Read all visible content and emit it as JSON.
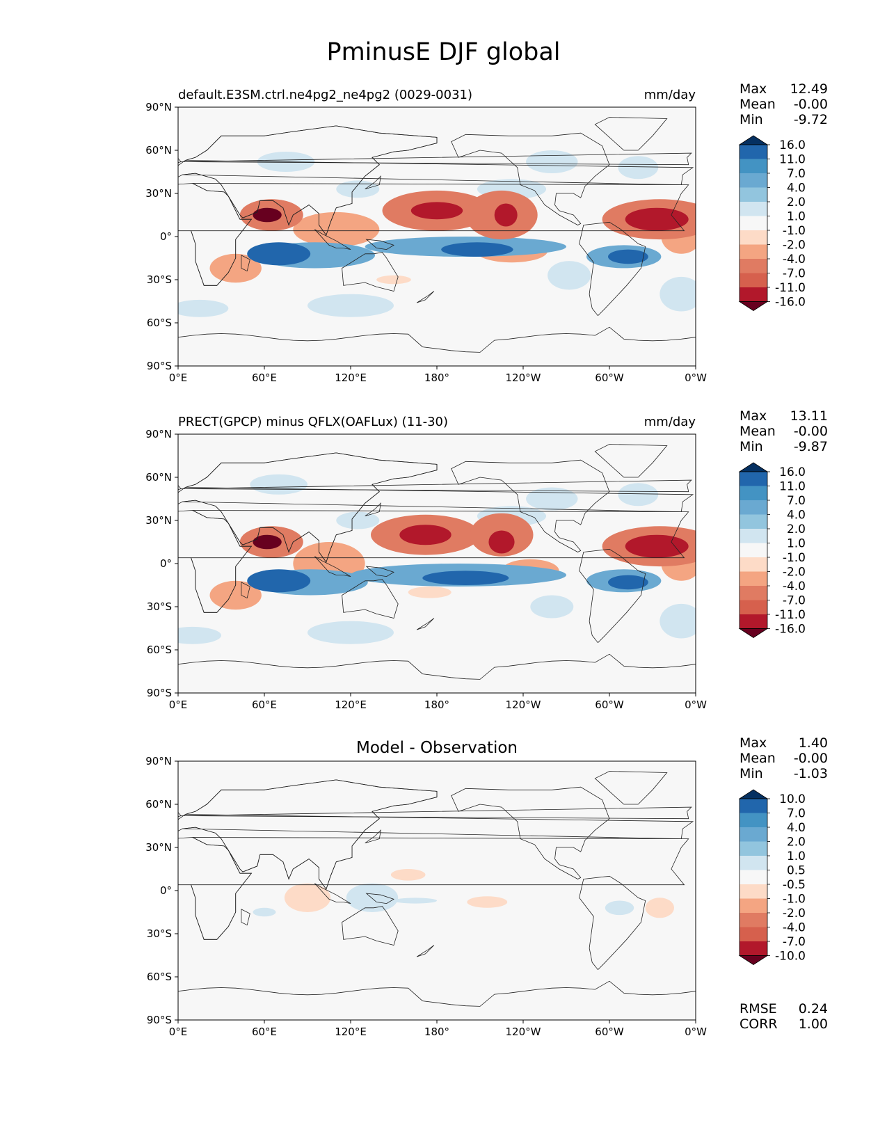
{
  "title": "PminusE DJF global",
  "chart_data": [
    {
      "type": "heatmap",
      "title": "default.E3SM.ctrl.ne4pg2_ne4pg2 (0029-0031)",
      "units": "mm/day",
      "x_ticks": [
        "0°E",
        "60°E",
        "120°E",
        "180°",
        "120°W",
        "60°W",
        "0°W"
      ],
      "y_ticks": [
        "90°N",
        "60°N",
        "30°N",
        "0°",
        "30°S",
        "60°S",
        "90°S"
      ],
      "xlim": [
        0,
        360
      ],
      "ylim": [
        -90,
        90
      ],
      "stats": [
        {
          "label": "Max",
          "value": "12.49"
        },
        {
          "label": "Mean",
          "value": "-0.00"
        },
        {
          "label": "Min",
          "value": "-9.72"
        }
      ],
      "colorbar_levels": [
        "16.0",
        "11.0",
        "7.0",
        "4.0",
        "2.0",
        "1.0",
        "-1.0",
        "-2.0",
        "-4.0",
        "-7.0",
        "-11.0",
        "-16.0"
      ],
      "colorbar_colors": [
        "#053061",
        "#2166ac",
        "#4393c3",
        "#6aa9d1",
        "#92c5de",
        "#d1e5f0",
        "#f7f7f7",
        "#fddbc7",
        "#f4a582",
        "#e07b62",
        "#d6604d",
        "#b2182b",
        "#67001f"
      ],
      "blobs": [
        {
          "lon": 95,
          "lat": -13,
          "rx": 42,
          "ry": 9,
          "v": -3
        },
        {
          "lon": 70,
          "lat": -12,
          "rx": 22,
          "ry": 8,
          "v": -5
        },
        {
          "lon": 200,
          "lat": -7,
          "rx": 70,
          "ry": 7,
          "v": -3
        },
        {
          "lon": 208,
          "lat": -9,
          "rx": 25,
          "ry": 5,
          "v": -5
        },
        {
          "lon": 310,
          "lat": -14,
          "rx": 26,
          "ry": 8,
          "v": -3
        },
        {
          "lon": 313,
          "lat": -14,
          "rx": 14,
          "ry": 5,
          "v": -5
        },
        {
          "lon": 272,
          "lat": -27,
          "rx": 15,
          "ry": 10,
          "v": -1
        },
        {
          "lon": 125,
          "lat": 33,
          "rx": 15,
          "ry": 6,
          "v": -1
        },
        {
          "lon": 232,
          "lat": 33,
          "rx": 24,
          "ry": 7,
          "v": -1
        },
        {
          "lon": 260,
          "lat": 52,
          "rx": 18,
          "ry": 8,
          "v": -1
        },
        {
          "lon": 320,
          "lat": 48,
          "rx": 14,
          "ry": 8,
          "v": -1
        },
        {
          "lon": 75,
          "lat": 52,
          "rx": 20,
          "ry": 7,
          "v": -1
        },
        {
          "lon": 120,
          "lat": -48,
          "rx": 30,
          "ry": 8,
          "v": -1
        },
        {
          "lon": 350,
          "lat": -40,
          "rx": 15,
          "ry": 12,
          "v": -1
        },
        {
          "lon": 15,
          "lat": -50,
          "rx": 20,
          "ry": 6,
          "v": -1
        },
        {
          "lon": 180,
          "lat": 18,
          "rx": 38,
          "ry": 14,
          "v": 3
        },
        {
          "lon": 180,
          "lat": 18,
          "rx": 18,
          "ry": 6,
          "v": 5
        },
        {
          "lon": 225,
          "lat": 15,
          "rx": 25,
          "ry": 17,
          "v": 3
        },
        {
          "lon": 228,
          "lat": 15,
          "rx": 8,
          "ry": 8,
          "v": 5
        },
        {
          "lon": 335,
          "lat": 12,
          "rx": 40,
          "ry": 14,
          "v": 3
        },
        {
          "lon": 333,
          "lat": 12,
          "rx": 22,
          "ry": 8,
          "v": 5
        },
        {
          "lon": 65,
          "lat": 15,
          "rx": 22,
          "ry": 11,
          "v": 3
        },
        {
          "lon": 62,
          "lat": 15,
          "rx": 10,
          "ry": 5,
          "v": 6
        },
        {
          "lon": 110,
          "lat": 5,
          "rx": 30,
          "ry": 12,
          "v": 2
        },
        {
          "lon": 232,
          "lat": -10,
          "rx": 25,
          "ry": 8,
          "v": 2
        },
        {
          "lon": 350,
          "lat": 0,
          "rx": 14,
          "ry": 12,
          "v": 2
        },
        {
          "lon": 40,
          "lat": -22,
          "rx": 18,
          "ry": 10,
          "v": 2
        },
        {
          "lon": 150,
          "lat": -30,
          "rx": 12,
          "ry": 3,
          "v": 1
        }
      ]
    },
    {
      "type": "heatmap",
      "title": "PRECT(GPCP) minus QFLX(OAFLux) (11-30)",
      "units": "mm/day",
      "x_ticks": [
        "0°E",
        "60°E",
        "120°E",
        "180°",
        "120°W",
        "60°W",
        "0°W"
      ],
      "y_ticks": [
        "90°N",
        "60°N",
        "30°N",
        "0°",
        "30°S",
        "60°S",
        "90°S"
      ],
      "xlim": [
        0,
        360
      ],
      "ylim": [
        -90,
        90
      ],
      "stats": [
        {
          "label": "Max",
          "value": "13.11"
        },
        {
          "label": "Mean",
          "value": "-0.00"
        },
        {
          "label": "Min",
          "value": "-9.87"
        }
      ],
      "colorbar_levels": [
        "16.0",
        "11.0",
        "7.0",
        "4.0",
        "2.0",
        "1.0",
        "-1.0",
        "-2.0",
        "-4.0",
        "-7.0",
        "-11.0",
        "-16.0"
      ],
      "colorbar_colors": [
        "#053061",
        "#2166ac",
        "#4393c3",
        "#6aa9d1",
        "#92c5de",
        "#d1e5f0",
        "#f7f7f7",
        "#fddbc7",
        "#f4a582",
        "#e07b62",
        "#d6604d",
        "#b2182b",
        "#67001f"
      ],
      "blobs": [
        {
          "lon": 92,
          "lat": -13,
          "rx": 40,
          "ry": 9,
          "v": -3
        },
        {
          "lon": 70,
          "lat": -12,
          "rx": 22,
          "ry": 8,
          "v": -5
        },
        {
          "lon": 195,
          "lat": -8,
          "rx": 75,
          "ry": 8,
          "v": -3
        },
        {
          "lon": 200,
          "lat": -10,
          "rx": 30,
          "ry": 5,
          "v": -5
        },
        {
          "lon": 310,
          "lat": -12,
          "rx": 26,
          "ry": 8,
          "v": -3
        },
        {
          "lon": 313,
          "lat": -13,
          "rx": 14,
          "ry": 5,
          "v": -5
        },
        {
          "lon": 260,
          "lat": -30,
          "rx": 15,
          "ry": 8,
          "v": -1
        },
        {
          "lon": 125,
          "lat": 30,
          "rx": 15,
          "ry": 6,
          "v": -1
        },
        {
          "lon": 232,
          "lat": 33,
          "rx": 24,
          "ry": 7,
          "v": -1
        },
        {
          "lon": 260,
          "lat": 45,
          "rx": 18,
          "ry": 8,
          "v": -1
        },
        {
          "lon": 320,
          "lat": 48,
          "rx": 14,
          "ry": 8,
          "v": -1
        },
        {
          "lon": 70,
          "lat": 55,
          "rx": 20,
          "ry": 7,
          "v": -1
        },
        {
          "lon": 120,
          "lat": -48,
          "rx": 30,
          "ry": 8,
          "v": -1
        },
        {
          "lon": 350,
          "lat": -40,
          "rx": 15,
          "ry": 12,
          "v": -1
        },
        {
          "lon": 10,
          "lat": -50,
          "rx": 20,
          "ry": 6,
          "v": -1
        },
        {
          "lon": 172,
          "lat": 20,
          "rx": 38,
          "ry": 14,
          "v": 3
        },
        {
          "lon": 172,
          "lat": 20,
          "rx": 18,
          "ry": 7,
          "v": 5
        },
        {
          "lon": 225,
          "lat": 20,
          "rx": 22,
          "ry": 15,
          "v": 3
        },
        {
          "lon": 225,
          "lat": 15,
          "rx": 9,
          "ry": 8,
          "v": 5
        },
        {
          "lon": 335,
          "lat": 12,
          "rx": 40,
          "ry": 14,
          "v": 3
        },
        {
          "lon": 333,
          "lat": 12,
          "rx": 22,
          "ry": 8,
          "v": 5
        },
        {
          "lon": 65,
          "lat": 15,
          "rx": 22,
          "ry": 11,
          "v": 3
        },
        {
          "lon": 62,
          "lat": 15,
          "rx": 10,
          "ry": 5,
          "v": 6
        },
        {
          "lon": 105,
          "lat": 0,
          "rx": 25,
          "ry": 15,
          "v": 2
        },
        {
          "lon": 245,
          "lat": -5,
          "rx": 20,
          "ry": 8,
          "v": 2
        },
        {
          "lon": 350,
          "lat": 0,
          "rx": 14,
          "ry": 12,
          "v": 2
        },
        {
          "lon": 40,
          "lat": -22,
          "rx": 18,
          "ry": 10,
          "v": 2
        },
        {
          "lon": 175,
          "lat": -20,
          "rx": 15,
          "ry": 4,
          "v": 1
        }
      ]
    },
    {
      "type": "heatmap",
      "title": "Model - Observation",
      "units": "",
      "x_ticks": [
        "0°E",
        "60°E",
        "120°E",
        "180°",
        "120°W",
        "60°W",
        "0°W"
      ],
      "y_ticks": [
        "90°N",
        "60°N",
        "30°N",
        "0°",
        "30°S",
        "60°S",
        "90°S"
      ],
      "xlim": [
        0,
        360
      ],
      "ylim": [
        -90,
        90
      ],
      "stats": [
        {
          "label": "Max",
          "value": "1.40"
        },
        {
          "label": "Mean",
          "value": "-0.00"
        },
        {
          "label": "Min",
          "value": "-1.03"
        }
      ],
      "colorbar_levels": [
        "10.0",
        "7.0",
        "4.0",
        "2.0",
        "1.0",
        "0.5",
        "-0.5",
        "-1.0",
        "-2.0",
        "-4.0",
        "-7.0",
        "-10.0"
      ],
      "colorbar_colors": [
        "#053061",
        "#2166ac",
        "#4393c3",
        "#6aa9d1",
        "#92c5de",
        "#d1e5f0",
        "#f7f7f7",
        "#fddbc7",
        "#f4a582",
        "#e07b62",
        "#d6604d",
        "#b2182b",
        "#67001f"
      ],
      "extra_stats": [
        {
          "label": "RMSE",
          "value": "0.24"
        },
        {
          "label": "CORR",
          "value": "1.00"
        }
      ],
      "blobs": [
        {
          "lon": 90,
          "lat": -5,
          "rx": 16,
          "ry": 10,
          "v": 1
        },
        {
          "lon": 160,
          "lat": 11,
          "rx": 12,
          "ry": 4,
          "v": 1
        },
        {
          "lon": 215,
          "lat": -8,
          "rx": 14,
          "ry": 4,
          "v": 1
        },
        {
          "lon": 335,
          "lat": -12,
          "rx": 10,
          "ry": 7,
          "v": 1
        },
        {
          "lon": 135,
          "lat": -5,
          "rx": 18,
          "ry": 10,
          "v": -1
        },
        {
          "lon": 165,
          "lat": -7,
          "rx": 15,
          "ry": 2,
          "v": -1
        },
        {
          "lon": 307,
          "lat": -12,
          "rx": 10,
          "ry": 5,
          "v": -1
        },
        {
          "lon": 60,
          "lat": -15,
          "rx": 8,
          "ry": 3,
          "v": -1
        }
      ]
    }
  ]
}
